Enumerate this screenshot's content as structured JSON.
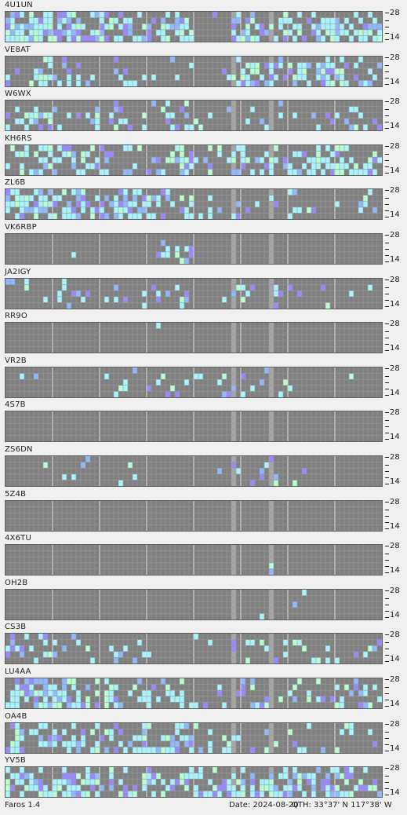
{
  "app": {
    "name": "Faros 1.4"
  },
  "footer": {
    "date": "Date: 2024-08-20",
    "qth": "QTH: 33°37' N  117°38' W"
  },
  "scale_labels": {
    "top": "28",
    "bottom": "14"
  },
  "colors": {
    "grid_bg": "#808080",
    "grid_line": "#9a9a9a",
    "separator": "#d0d0d0",
    "highlight_col": "#a6a6a6",
    "signal_weak": "#8fb8ff",
    "signal_mid": "#a6f4ff",
    "signal_strong": "#b6ffd0",
    "signal_purple": "#9a88ff"
  },
  "beacons": [
    {
      "callsign": "4U1UN",
      "activity": [
        [
          0.92,
          0.7,
          0.6,
          0.9,
          0.75
        ],
        [
          0.25,
          0.15,
          0.1,
          0.45,
          0.65
        ]
      ],
      "seed": 11
    },
    {
      "callsign": "VE8AT",
      "activity": [
        [
          0.35,
          0.15,
          0.05,
          0.2,
          0.3
        ],
        [
          0.1,
          0.05,
          0.05,
          0.45,
          0.5
        ]
      ],
      "seed": 23
    },
    {
      "callsign": "W6WX",
      "activity": [
        [
          0.3,
          0.25,
          0.35,
          0.1,
          0.1
        ],
        [
          0.15,
          0.1,
          0.1,
          0.1,
          0.2
        ]
      ],
      "seed": 37
    },
    {
      "callsign": "KH6RS",
      "activity": [
        [
          0.55,
          0.35,
          0.45,
          0.2,
          0.2
        ],
        [
          0.1,
          0.1,
          0.35,
          0.5,
          0.6
        ]
      ],
      "seed": 41
    },
    {
      "callsign": "ZL6B",
      "activity": [
        [
          0.7,
          0.6,
          0.55,
          0.3,
          0.1
        ],
        [
          0.05,
          0.05,
          0.1,
          0.25,
          0.15
        ]
      ],
      "seed": 53
    },
    {
      "callsign": "VK6RBP",
      "activity": [
        [
          0.02,
          0.05,
          0.3,
          0.2,
          0.02
        ],
        [
          0.0,
          0.0,
          0.0,
          0.0,
          0.0
        ]
      ],
      "seed": 61
    },
    {
      "callsign": "JA2IGY",
      "activity": [
        [
          0.1,
          0.15,
          0.25,
          0.1,
          0.05
        ],
        [
          0.05,
          0.05,
          0.1,
          0.15,
          0.05
        ]
      ],
      "seed": 71
    },
    {
      "callsign": "RR9O",
      "activity": [
        [
          0.0,
          0.0,
          0.02,
          0.0,
          0.0
        ],
        [
          0.0,
          0.0,
          0.0,
          0.0,
          0.0
        ]
      ],
      "seed": 83
    },
    {
      "callsign": "VR2B",
      "activity": [
        [
          0.05,
          0.15,
          0.25,
          0.15,
          0.05
        ],
        [
          0.05,
          0.3,
          0.25,
          0.15,
          0.05
        ]
      ],
      "seed": 97
    },
    {
      "callsign": "4S7B",
      "activity": [
        [
          0.0,
          0.0,
          0.0,
          0.0,
          0.0
        ],
        [
          0.0,
          0.0,
          0.0,
          0.0,
          0.0
        ]
      ],
      "seed": 101
    },
    {
      "callsign": "ZS6DN",
      "activity": [
        [
          0.02,
          0.05,
          0.02,
          0.1,
          0.02
        ],
        [
          0.0,
          0.0,
          0.1,
          0.15,
          0.02
        ]
      ],
      "seed": 113
    },
    {
      "callsign": "5Z4B",
      "activity": [
        [
          0.0,
          0.0,
          0.0,
          0.0,
          0.0
        ],
        [
          0.0,
          0.0,
          0.0,
          0.0,
          0.0
        ]
      ],
      "seed": 127
    },
    {
      "callsign": "4X6TU",
      "activity": [
        [
          0.0,
          0.0,
          0.0,
          0.0,
          0.0
        ],
        [
          0.0,
          0.0,
          0.0,
          0.02,
          0.0
        ]
      ],
      "seed": 131
    },
    {
      "callsign": "OH2B",
      "activity": [
        [
          0.0,
          0.0,
          0.0,
          0.0,
          0.0
        ],
        [
          0.0,
          0.0,
          0.0,
          0.02,
          0.0
        ]
      ],
      "seed": 137
    },
    {
      "callsign": "CS3B",
      "activity": [
        [
          0.35,
          0.15,
          0.02,
          0.05,
          0.1
        ],
        [
          0.02,
          0.0,
          0.1,
          0.2,
          0.1
        ]
      ],
      "seed": 149
    },
    {
      "callsign": "LU4AA",
      "activity": [
        [
          0.75,
          0.55,
          0.3,
          0.2,
          0.25
        ],
        [
          0.05,
          0.05,
          0.1,
          0.25,
          0.3
        ]
      ],
      "seed": 151
    },
    {
      "callsign": "OA4B",
      "activity": [
        [
          0.55,
          0.5,
          0.45,
          0.3,
          0.1
        ],
        [
          0.05,
          0.15,
          0.2,
          0.1,
          0.1
        ]
      ],
      "seed": 163
    },
    {
      "callsign": "YV5B",
      "activity": [
        [
          0.7,
          0.55,
          0.45,
          0.5,
          0.25
        ],
        [
          0.35,
          0.45,
          0.6,
          0.55,
          0.5
        ]
      ],
      "seed": 173
    }
  ]
}
